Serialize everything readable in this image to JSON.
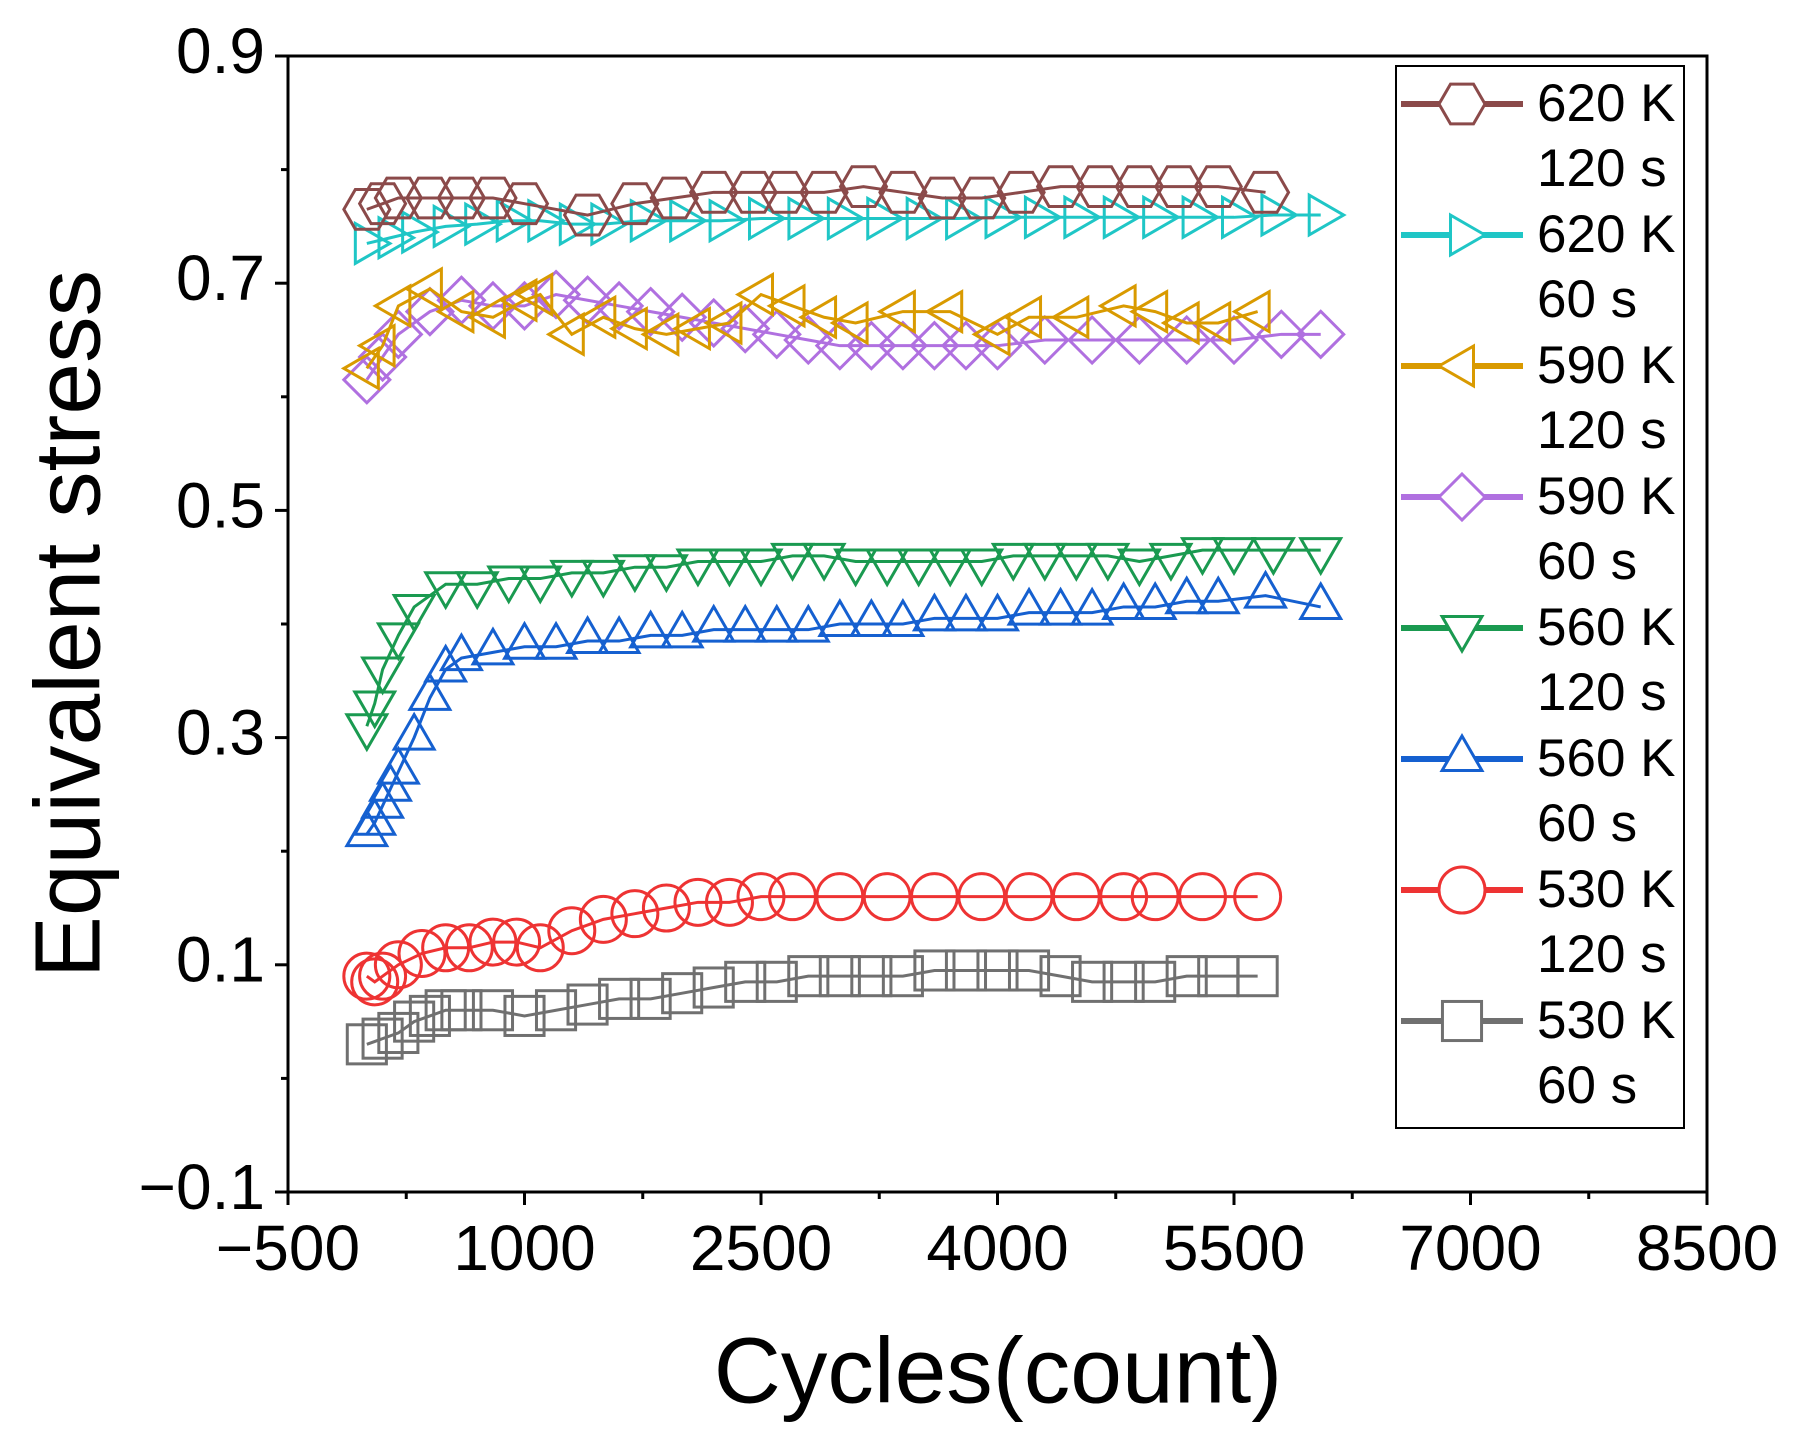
{
  "chart_data": {
    "type": "scatter",
    "x_label": "Cycles(count)",
    "y_label": "Equivalent stress",
    "xlim": [
      -500,
      8500
    ],
    "xticks": [
      {
        "value": -500,
        "label": "−500"
      },
      1000,
      2500,
      4000,
      5500,
      7000,
      8500
    ],
    "ylim": [
      -0.1,
      0.9
    ],
    "yticks": [
      {
        "value": -0.1,
        "label": "−0.1"
      },
      0.1,
      0.3,
      0.5,
      0.7,
      0.9
    ],
    "legend": "upper right",
    "series": [
      {
        "name": "620 K 120 s",
        "color": "#8b4a4a",
        "marker": "hexagon",
        "x": [
          0,
          100,
          200,
          400,
          600,
          800,
          1000,
          1400,
          1700,
          1950,
          2200,
          2450,
          2650,
          2900,
          3150,
          3400,
          3650,
          3900,
          4150,
          4400,
          4650,
          4900,
          5150,
          5400,
          5700
        ],
        "values": [
          0.765,
          0.77,
          0.775,
          0.775,
          0.775,
          0.775,
          0.77,
          0.76,
          0.77,
          0.775,
          0.78,
          0.78,
          0.78,
          0.78,
          0.785,
          0.78,
          0.775,
          0.775,
          0.78,
          0.785,
          0.785,
          0.785,
          0.785,
          0.785,
          0.78
        ]
      },
      {
        "name": "620 K 60 s",
        "color": "#1fc6c6",
        "marker": "triangle-right",
        "x": [
          0,
          150,
          300,
          500,
          700,
          900,
          1100,
          1300,
          1500,
          1750,
          2000,
          2250,
          2500,
          2750,
          3000,
          3250,
          3500,
          3750,
          4000,
          4250,
          4500,
          4750,
          5000,
          5250,
          5500,
          5750,
          6050
        ],
        "values": [
          0.735,
          0.74,
          0.745,
          0.75,
          0.752,
          0.755,
          0.755,
          0.752,
          0.752,
          0.755,
          0.755,
          0.755,
          0.757,
          0.757,
          0.757,
          0.757,
          0.757,
          0.757,
          0.758,
          0.758,
          0.758,
          0.758,
          0.758,
          0.758,
          0.758,
          0.76,
          0.76
        ]
      },
      {
        "name": "590 K 120 s",
        "color": "#d99a00",
        "marker": "triangle-left",
        "x": [
          0,
          100,
          200,
          400,
          600,
          800,
          1000,
          1100,
          1300,
          1500,
          1700,
          1900,
          2100,
          2300,
          2500,
          2700,
          2900,
          3100,
          3400,
          3700,
          4000,
          4200,
          4500,
          4800,
          5000,
          5200,
          5400,
          5650
        ],
        "values": [
          0.625,
          0.645,
          0.68,
          0.695,
          0.675,
          0.67,
          0.685,
          0.69,
          0.655,
          0.67,
          0.66,
          0.655,
          0.66,
          0.665,
          0.69,
          0.68,
          0.67,
          0.665,
          0.675,
          0.675,
          0.655,
          0.67,
          0.67,
          0.68,
          0.675,
          0.665,
          0.665,
          0.675
        ]
      },
      {
        "name": "590 K 60 s",
        "color": "#b070e0",
        "marker": "diamond",
        "x": [
          0,
          100,
          200,
          400,
          600,
          800,
          1000,
          1200,
          1400,
          1600,
          1800,
          2000,
          2200,
          2400,
          2600,
          2800,
          3000,
          3200,
          3400,
          3600,
          3800,
          4000,
          4300,
          4600,
          4900,
          5200,
          5500,
          5800,
          6050
        ],
        "values": [
          0.615,
          0.635,
          0.655,
          0.675,
          0.685,
          0.68,
          0.68,
          0.69,
          0.685,
          0.68,
          0.675,
          0.67,
          0.665,
          0.66,
          0.655,
          0.65,
          0.645,
          0.645,
          0.645,
          0.645,
          0.645,
          0.645,
          0.65,
          0.65,
          0.65,
          0.65,
          0.65,
          0.655,
          0.655
        ]
      },
      {
        "name": "560 K 120 s",
        "color": "#1a9a50",
        "marker": "triangle-down",
        "x": [
          0,
          50,
          100,
          200,
          300,
          500,
          700,
          900,
          1100,
          1300,
          1500,
          1700,
          1900,
          2100,
          2300,
          2500,
          2700,
          2900,
          3100,
          3300,
          3500,
          3700,
          3900,
          4100,
          4300,
          4500,
          4700,
          4900,
          5100,
          5300,
          5500,
          5750,
          6050
        ],
        "values": [
          0.31,
          0.33,
          0.36,
          0.39,
          0.415,
          0.435,
          0.435,
          0.44,
          0.44,
          0.445,
          0.445,
          0.45,
          0.45,
          0.455,
          0.455,
          0.455,
          0.46,
          0.46,
          0.455,
          0.455,
          0.455,
          0.455,
          0.455,
          0.46,
          0.46,
          0.46,
          0.46,
          0.455,
          0.46,
          0.465,
          0.465,
          0.465,
          0.465
        ]
      },
      {
        "name": "560 K 60 s",
        "color": "#1560d0",
        "marker": "triangle-up",
        "x": [
          0,
          50,
          100,
          150,
          200,
          300,
          400,
          500,
          600,
          800,
          1000,
          1200,
          1400,
          1600,
          1800,
          2000,
          2200,
          2400,
          2600,
          2800,
          3000,
          3200,
          3400,
          3600,
          3800,
          4000,
          4200,
          4400,
          4600,
          4800,
          5000,
          5200,
          5400,
          5700,
          6050
        ],
        "values": [
          0.215,
          0.225,
          0.24,
          0.255,
          0.27,
          0.3,
          0.335,
          0.36,
          0.37,
          0.375,
          0.38,
          0.38,
          0.385,
          0.385,
          0.39,
          0.39,
          0.395,
          0.395,
          0.395,
          0.395,
          0.4,
          0.4,
          0.4,
          0.405,
          0.405,
          0.405,
          0.41,
          0.41,
          0.41,
          0.415,
          0.415,
          0.42,
          0.42,
          0.425,
          0.415
        ]
      },
      {
        "name": "530 K 120 s",
        "color": "#ee3333",
        "marker": "circle",
        "x": [
          0,
          50,
          100,
          200,
          350,
          500,
          650,
          800,
          950,
          1100,
          1300,
          1500,
          1700,
          1900,
          2100,
          2300,
          2500,
          2700,
          3000,
          3300,
          3600,
          3900,
          4200,
          4500,
          4800,
          5000,
          5300,
          5650
        ],
        "values": [
          0.09,
          0.085,
          0.09,
          0.1,
          0.11,
          0.115,
          0.115,
          0.12,
          0.12,
          0.115,
          0.13,
          0.14,
          0.145,
          0.15,
          0.155,
          0.155,
          0.16,
          0.16,
          0.16,
          0.16,
          0.16,
          0.16,
          0.16,
          0.16,
          0.16,
          0.16,
          0.16,
          0.16
        ]
      },
      {
        "name": "530 K 60 s",
        "color": "#707070",
        "marker": "square",
        "x": [
          0,
          100,
          200,
          300,
          400,
          500,
          600,
          800,
          1000,
          1200,
          1400,
          1600,
          1800,
          2000,
          2200,
          2400,
          2600,
          2800,
          3000,
          3200,
          3400,
          3600,
          3800,
          4000,
          4200,
          4400,
          4600,
          4800,
          5000,
          5200,
          5400,
          5650
        ],
        "values": [
          0.03,
          0.035,
          0.04,
          0.05,
          0.055,
          0.06,
          0.06,
          0.06,
          0.055,
          0.06,
          0.065,
          0.07,
          0.07,
          0.075,
          0.08,
          0.085,
          0.085,
          0.09,
          0.09,
          0.09,
          0.09,
          0.095,
          0.095,
          0.095,
          0.095,
          0.09,
          0.085,
          0.085,
          0.085,
          0.09,
          0.09,
          0.09
        ]
      }
    ]
  }
}
